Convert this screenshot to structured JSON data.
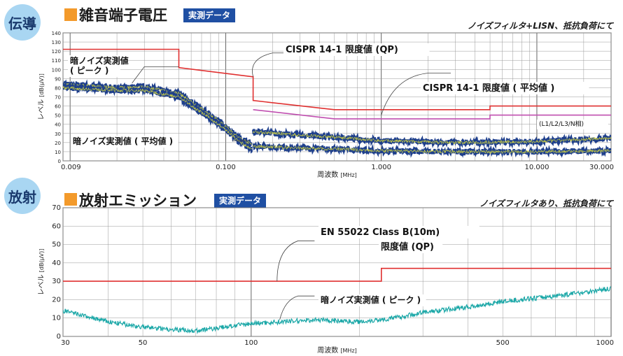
{
  "sections": [
    {
      "badge": "伝導",
      "title": "雑音端子電圧",
      "tag": "実測データ",
      "condition": "ノイズフィルタ+LISN、抵抗負荷にて"
    },
    {
      "badge": "放射",
      "title": "放射エミッション",
      "tag": "実測データ",
      "condition": "ノイズフィルタあり、抵抗負荷にて"
    }
  ],
  "colors": {
    "badge_bg": "#a9d6f2",
    "accent_square": "#f39a2b",
    "tag_bg": "#1f4fa3",
    "limit_qp": "#e03030",
    "limit_avg": "#c04fb0",
    "noise_peak": "#1e3f8c",
    "noise_highlight": "#e6e63a",
    "radiated_noise": "#1aa7a7"
  },
  "chart_data": [
    {
      "type": "line",
      "xscale": "log",
      "xlim": [
        0.009,
        30
      ],
      "ylim": [
        0,
        140
      ],
      "yticks": [
        0,
        10,
        20,
        30,
        40,
        50,
        60,
        70,
        80,
        90,
        100,
        110,
        120,
        130,
        140
      ],
      "xtick_labels": [
        {
          "x": 0.009,
          "label": "0.009"
        },
        {
          "x": 0.1,
          "label": "0.100"
        },
        {
          "x": 1,
          "label": "1.000"
        },
        {
          "x": 10,
          "label": "10.000"
        },
        {
          "x": 30,
          "label": "30.000"
        }
      ],
      "xlabel": "周波数",
      "xlabel_unit": "[MHz]",
      "ylabel": "レベル",
      "ylabel_unit": "[dB(μV)]",
      "grid": true,
      "series": [
        {
          "name": "CISPR 14-1 限度値 (QP)",
          "style": "limit",
          "color": "#e03030",
          "points": [
            [
              0.009,
              122
            ],
            [
              0.05,
              122
            ],
            [
              0.05,
              102
            ],
            [
              0.148,
              92
            ],
            [
              0.15,
              92
            ],
            [
              0.15,
              66
            ],
            [
              0.5,
              56
            ],
            [
              5,
              56
            ],
            [
              5,
              60
            ],
            [
              30,
              60
            ]
          ]
        },
        {
          "name": "CISPR 14-1 限度値 ( 平均値 )",
          "style": "limit",
          "color": "#c04fb0",
          "points": [
            [
              0.15,
              56
            ],
            [
              0.5,
              46
            ],
            [
              5,
              46
            ],
            [
              5,
              50
            ],
            [
              30,
              50
            ]
          ]
        },
        {
          "name": "暗ノイズ実測値 ( ピーク )",
          "style": "noise",
          "color": "#1e3f8c",
          "points": [
            [
              0.009,
              84
            ],
            [
              0.02,
              80
            ],
            [
              0.03,
              81
            ],
            [
              0.05,
              74
            ],
            [
              0.08,
              50
            ],
            [
              0.1,
              38
            ],
            [
              0.12,
              26
            ],
            [
              0.148,
              18
            ],
            [
              0.15,
              32
            ],
            [
              0.3,
              28
            ],
            [
              0.5,
              26
            ],
            [
              1,
              22
            ],
            [
              3,
              20
            ],
            [
              10,
              21
            ],
            [
              30,
              25
            ]
          ]
        },
        {
          "name": "暗ノイズ実測値 ( 平均値 )",
          "style": "noise",
          "color": "#1e3f8c",
          "points": [
            [
              0.009,
              80
            ],
            [
              0.02,
              77
            ],
            [
              0.03,
              77
            ],
            [
              0.05,
              70
            ],
            [
              0.08,
              46
            ],
            [
              0.1,
              34
            ],
            [
              0.12,
              22
            ],
            [
              0.148,
              12
            ],
            [
              0.15,
              16
            ],
            [
              0.3,
              14
            ],
            [
              0.5,
              13
            ],
            [
              1,
              11
            ],
            [
              3,
              10
            ],
            [
              10,
              10
            ],
            [
              30,
              11
            ]
          ]
        }
      ],
      "annotations": [
        {
          "text": "CISPR 14-1 限度値 (QP)"
        },
        {
          "text": "CISPR 14-1 限度値 ( 平均値 )"
        },
        {
          "text": "暗ノイズ実測値\n( ピーク )"
        },
        {
          "text": "暗ノイズ実測値 ( 平均値 )"
        },
        {
          "text": "(L1/L2/L3/N相)"
        }
      ]
    },
    {
      "type": "line",
      "xscale": "log",
      "xlim": [
        30,
        1000
      ],
      "ylim": [
        0,
        70
      ],
      "yticks": [
        0,
        10,
        20,
        30,
        40,
        50,
        60,
        70
      ],
      "xtick_labels": [
        {
          "x": 30,
          "label": "30"
        },
        {
          "x": 50,
          "label": "50"
        },
        {
          "x": 100,
          "label": "100"
        },
        {
          "x": 500,
          "label": "500"
        },
        {
          "x": 1000,
          "label": "1000"
        }
      ],
      "xlabel": "周波数",
      "xlabel_unit": "[MHz]",
      "ylabel": "レベル",
      "ylabel_unit": "[dB(μV)]",
      "grid": true,
      "series": [
        {
          "name": "EN 55022 Class B(10m) 限度値 (QP)",
          "style": "limit",
          "color": "#e03030",
          "points": [
            [
              30,
              30
            ],
            [
              230,
              30
            ],
            [
              230,
              37
            ],
            [
              1000,
              37
            ]
          ]
        },
        {
          "name": "暗ノイズ実測値 ( ピーク )",
          "style": "noise",
          "color": "#1aa7a7",
          "points": [
            [
              30,
              14
            ],
            [
              40,
              8
            ],
            [
              50,
              5
            ],
            [
              70,
              3
            ],
            [
              100,
              7
            ],
            [
              150,
              9
            ],
            [
              200,
              8
            ],
            [
              250,
              10
            ],
            [
              300,
              13
            ],
            [
              400,
              16
            ],
            [
              500,
              19
            ],
            [
              700,
              22
            ],
            [
              1000,
              26
            ]
          ]
        }
      ],
      "annotations": [
        {
          "text": "EN 55022 Class B(10m)"
        },
        {
          "text": "限度値 (QP)"
        },
        {
          "text": "暗ノイズ実測値 ( ピーク )"
        }
      ]
    }
  ]
}
